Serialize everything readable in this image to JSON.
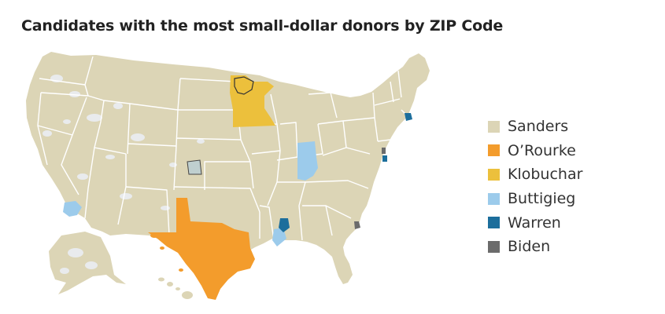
{
  "title": "Candidates with the most small-dollar donors by ZIP Code",
  "legend": {
    "items": [
      {
        "label": "Sanders",
        "color": "#dcd5b6"
      },
      {
        "label": "O’Rourke",
        "color": "#f39c2c"
      },
      {
        "label": "Klobuchar",
        "color": "#ecc03c"
      },
      {
        "label": "Buttigieg",
        "color": "#9ccbeb"
      },
      {
        "label": "Warren",
        "color": "#1c6e9c"
      },
      {
        "label": "Biden",
        "color": "#6b6b6b"
      }
    ]
  },
  "colors": {
    "base": "#dcd5b6",
    "state_border": "#ffffff",
    "no_data": "#e9ebed"
  }
}
